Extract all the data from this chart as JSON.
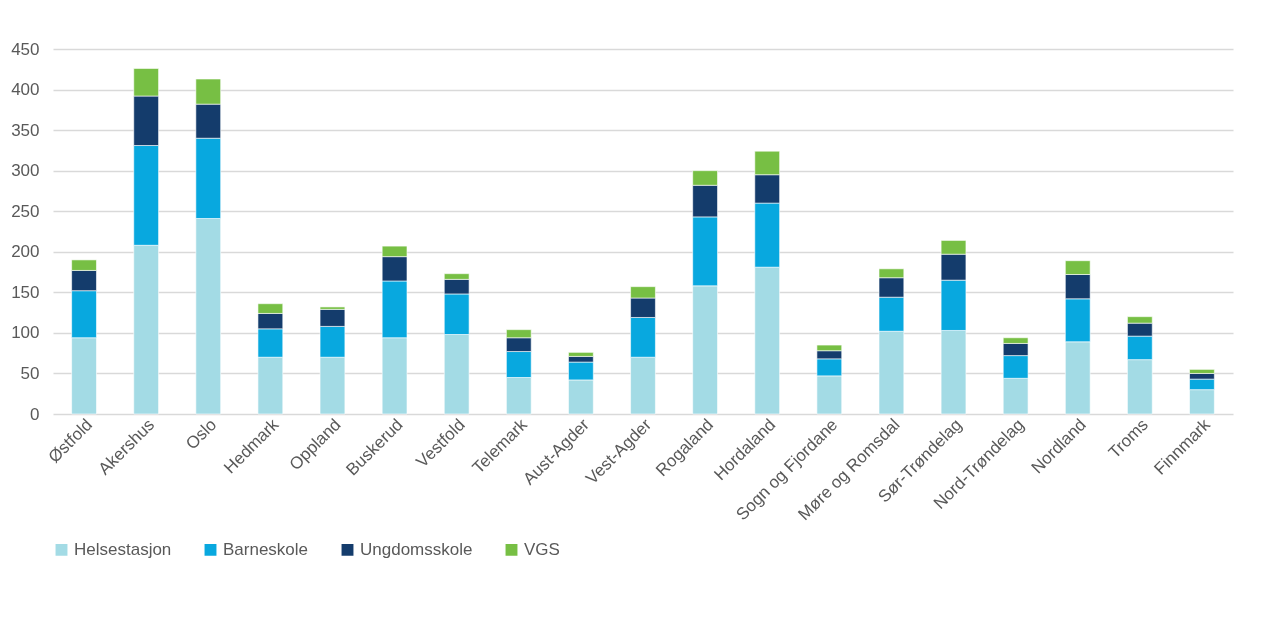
{
  "chart_data": {
    "type": "bar",
    "stacked": true,
    "categories": [
      "Østfold",
      "Akershus",
      "Oslo",
      "Hedmark",
      "Oppland",
      "Buskerud",
      "Vestfold",
      "Telemark",
      "Aust-Agder",
      "Vest-Agder",
      "Rogaland",
      "Hordaland",
      "Sogn og Fjordane",
      "Møre og Romsdal",
      "Sør-Trøndelag",
      "Nord-Trøndelag",
      "Nordland",
      "Troms",
      "Finnmark"
    ],
    "series": [
      {
        "name": "Helsestasjon",
        "color": "#a3dbe5",
        "values": [
          94,
          208,
          241,
          70,
          70,
          94,
          98,
          45,
          42,
          70,
          158,
          181,
          47,
          102,
          103,
          44,
          89,
          67,
          30
        ]
      },
      {
        "name": "Barneskole",
        "color": "#08a8df",
        "values": [
          58,
          123,
          99,
          35,
          38,
          70,
          50,
          32,
          22,
          49,
          85,
          79,
          21,
          42,
          62,
          28,
          53,
          29,
          13
        ]
      },
      {
        "name": "Ungdomsskole",
        "color": "#143c6c",
        "values": [
          25,
          61,
          42,
          19,
          21,
          30,
          18,
          17,
          7,
          24,
          39,
          35,
          10,
          24,
          32,
          15,
          30,
          16,
          7
        ]
      },
      {
        "name": "VGS",
        "color": "#77bf44",
        "values": [
          13,
          34,
          31,
          12,
          3,
          13,
          7,
          10,
          5,
          14,
          18,
          29,
          7,
          11,
          17,
          7,
          17,
          8,
          5
        ]
      }
    ],
    "ylim": [
      0,
      450
    ],
    "yticks": [
      0,
      50,
      100,
      150,
      200,
      250,
      300,
      350,
      400,
      450
    ],
    "grid": "y",
    "legend": "bottom"
  }
}
